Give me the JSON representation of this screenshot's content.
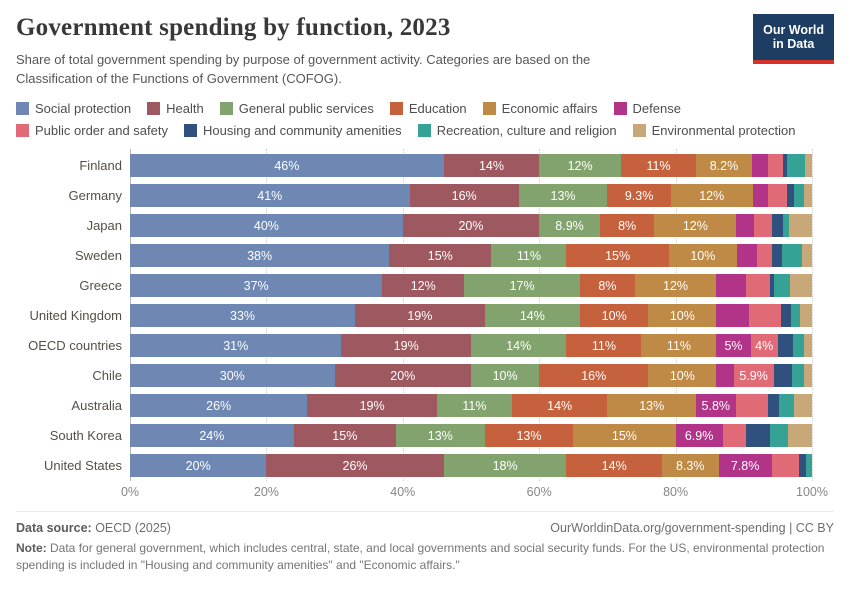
{
  "header": {
    "title": "Government spending by function, 2023",
    "subtitle": "Share of total government spending by purpose of government activity. Categories are based on the Classification of the Functions of Government (COFOG).",
    "logo": {
      "line1": "Our World",
      "line2": "in Data",
      "bg_color": "#1d3d63",
      "accent_color": "#d7332a"
    }
  },
  "chart_data": {
    "type": "bar",
    "variant": "horizontal-stacked",
    "unit": "%",
    "grid": true,
    "legend_position": "top",
    "xlim": [
      0,
      100
    ],
    "x_ticks": [
      "0%",
      "20%",
      "40%",
      "60%",
      "80%",
      "100%"
    ],
    "categories": [
      "Social protection",
      "Health",
      "General public services",
      "Education",
      "Economic affairs",
      "Defense",
      "Public order and safety",
      "Housing and community amenities",
      "Recreation, culture and religion",
      "Environmental protection"
    ],
    "colors": [
      "#6E87B3",
      "#9E5860",
      "#83A36E",
      "#C5613C",
      "#BF8A45",
      "#B23488",
      "#E06B77",
      "#30507D",
      "#36A295",
      "#C8A878"
    ],
    "rows": [
      {
        "country": "Finland",
        "values": [
          46,
          14,
          12,
          11,
          8.2,
          2.3,
          2.3,
          0.6,
          2.6,
          1.0
        ],
        "labels": [
          "46%",
          "14%",
          "12%",
          "11%",
          "8.2%",
          "",
          "",
          "",
          "",
          ""
        ]
      },
      {
        "country": "Germany",
        "values": [
          41,
          16,
          13,
          9.3,
          12,
          2.2,
          2.8,
          1.0,
          1.5,
          1.2
        ],
        "labels": [
          "41%",
          "16%",
          "13%",
          "9.3%",
          "12%",
          "",
          "",
          "",
          "",
          ""
        ]
      },
      {
        "country": "Japan",
        "values": [
          40,
          20,
          8.9,
          8,
          12,
          2.6,
          2.6,
          1.7,
          0.9,
          3.3
        ],
        "labels": [
          "40%",
          "20%",
          "8.9%",
          "8%",
          "12%",
          "",
          "",
          "",
          "",
          ""
        ]
      },
      {
        "country": "Sweden",
        "values": [
          38,
          15,
          11,
          15,
          10,
          2.9,
          2.2,
          1.5,
          2.9,
          1.5
        ],
        "labels": [
          "38%",
          "15%",
          "11%",
          "15%",
          "10%",
          "",
          "",
          "",
          "",
          ""
        ]
      },
      {
        "country": "Greece",
        "values": [
          37,
          12,
          17,
          8,
          12,
          4.4,
          3.4,
          0.7,
          2.3,
          3.2
        ],
        "labels": [
          "37%",
          "12%",
          "17%",
          "8%",
          "12%",
          "",
          "",
          "",
          "",
          ""
        ]
      },
      {
        "country": "United Kingdom",
        "values": [
          33,
          19,
          14,
          10,
          10,
          4.7,
          4.7,
          1.5,
          1.3,
          1.8
        ],
        "labels": [
          "33%",
          "19%",
          "14%",
          "10%",
          "10%",
          "",
          "",
          "",
          "",
          ""
        ]
      },
      {
        "country": "OECD countries",
        "values": [
          31,
          19,
          14,
          11,
          11,
          5,
          4,
          2.2,
          1.6,
          1.2
        ],
        "labels": [
          "31%",
          "19%",
          "14%",
          "11%",
          "11%",
          "5%",
          "4%",
          "",
          "",
          ""
        ]
      },
      {
        "country": "Chile",
        "values": [
          30,
          20,
          10,
          16,
          10,
          2.5,
          5.9,
          2.7,
          1.7,
          1.2
        ],
        "labels": [
          "30%",
          "20%",
          "10%",
          "16%",
          "10%",
          "",
          "5.9%",
          "",
          "",
          ""
        ]
      },
      {
        "country": "Australia",
        "values": [
          26,
          19,
          11,
          14,
          13,
          5.8,
          4.8,
          1.6,
          2.1,
          2.7
        ],
        "labels": [
          "26%",
          "19%",
          "11%",
          "14%",
          "13%",
          "5.8%",
          "",
          "",
          "",
          ""
        ]
      },
      {
        "country": "South Korea",
        "values": [
          24,
          15,
          13,
          13,
          15,
          6.9,
          3.5,
          3.4,
          2.7,
          3.5
        ],
        "labels": [
          "24%",
          "15%",
          "13%",
          "13%",
          "15%",
          "6.9%",
          "",
          "",
          "",
          ""
        ]
      },
      {
        "country": "United States",
        "values": [
          20,
          26,
          18,
          14,
          8.3,
          7.8,
          4.0,
          1.0,
          0.9,
          0
        ],
        "labels": [
          "20%",
          "26%",
          "18%",
          "14%",
          "8.3%",
          "7.8%",
          "",
          "",
          "",
          ""
        ]
      }
    ]
  },
  "footer": {
    "source_label": "Data source:",
    "source_value": " OECD (2025)",
    "link": "OurWorldinData.org/government-spending | CC BY",
    "note_label": "Note:",
    "note_value": " Data for general government, which includes central, state, and local governments and social security funds. For the US, environmental protection spending is included in \"Housing and community amenities\" and \"Economic affairs.\""
  }
}
